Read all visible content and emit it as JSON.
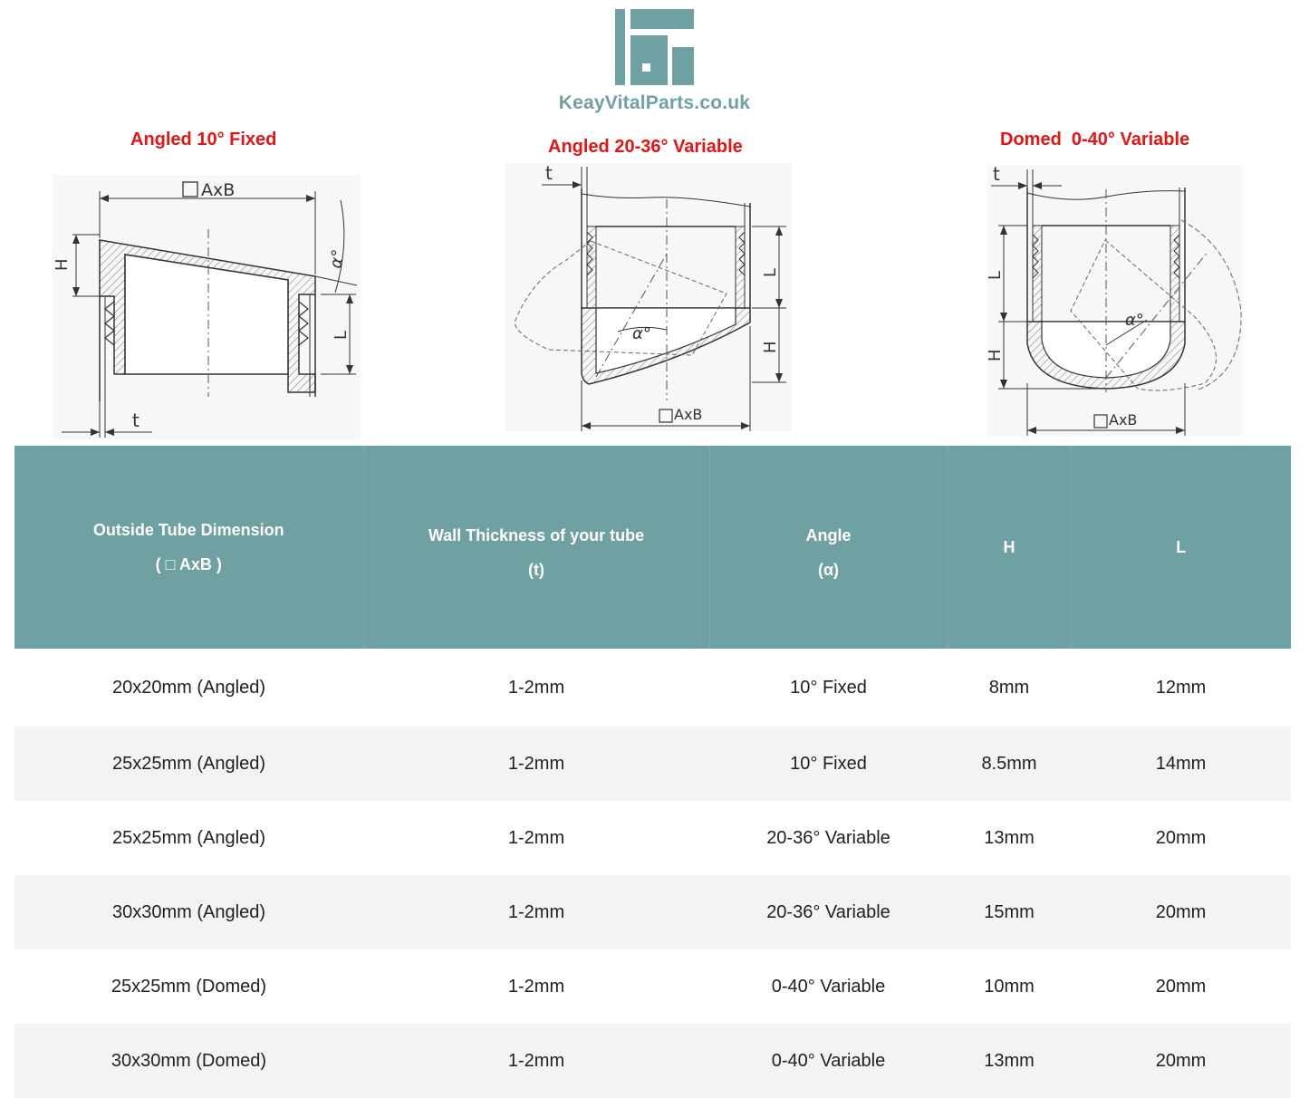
{
  "brand": {
    "name": "KeayVitalParts.co.uk",
    "color": "#6fa0a2"
  },
  "types": [
    {
      "title": "Angled 10° Fixed"
    },
    {
      "title": "Angled 20-36° Variable"
    },
    {
      "title": "Domed  0-40° Variable"
    }
  ],
  "diagram_labels": {
    "axb": "AxB",
    "h": "H",
    "l": "L",
    "t": "t",
    "alpha": "α°"
  },
  "table": {
    "header_color": "#6fa0a2",
    "headers": [
      {
        "line1": "Outside Tube Dimension",
        "line2": "( □ AxB )"
      },
      {
        "line1": "Wall Thickness of your tube",
        "line2": "(t)"
      },
      {
        "line1": "Angle",
        "line2": "(α)"
      },
      {
        "line1": "H",
        "line2": ""
      },
      {
        "line1": "L",
        "line2": ""
      }
    ],
    "rows": [
      [
        "20x20mm (Angled)",
        "1-2mm",
        "10° Fixed",
        "8mm",
        "12mm"
      ],
      [
        "25x25mm (Angled)",
        "1-2mm",
        "10° Fixed",
        "8.5mm",
        "14mm"
      ],
      [
        "25x25mm (Angled)",
        "1-2mm",
        "20-36° Variable",
        "13mm",
        "20mm"
      ],
      [
        "30x30mm (Angled)",
        "1-2mm",
        "20-36° Variable",
        "15mm",
        "20mm"
      ],
      [
        "25x25mm (Domed)",
        "1-2mm",
        "0-40° Variable",
        "10mm",
        "20mm"
      ],
      [
        "30x30mm (Domed)",
        "1-2mm",
        "0-40° Variable",
        "13mm",
        "20mm"
      ]
    ]
  }
}
